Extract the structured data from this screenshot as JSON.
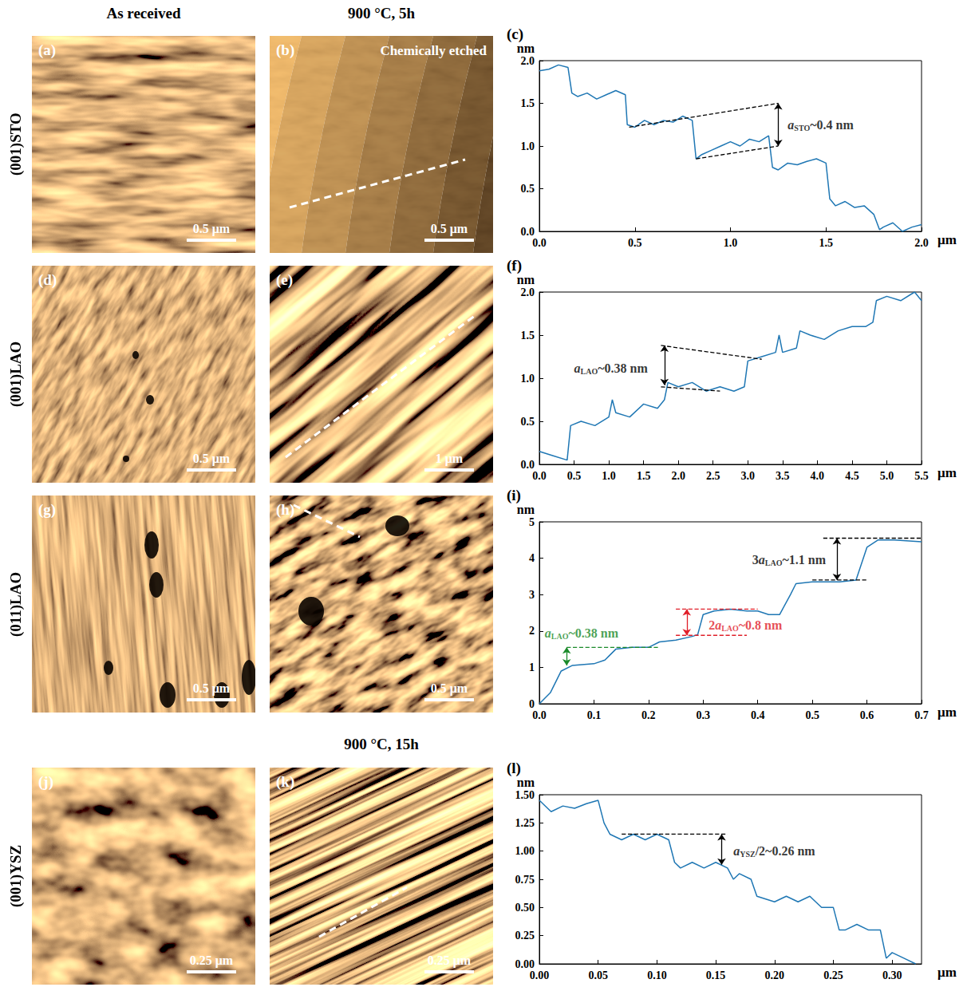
{
  "figure": {
    "column_titles": [
      "As received",
      "900 °C, 5h"
    ],
    "section_title": "900 °C, 15h",
    "rows": [
      {
        "label": "(001)STO",
        "panels": [
          {
            "letter": "(a)",
            "scale_bar": "0.5 μm"
          },
          {
            "letter": "(b)",
            "scale_bar": "0.5 μm",
            "note": "Chemically etched"
          }
        ]
      },
      {
        "label": "(001)LAO",
        "panels": [
          {
            "letter": "(d)",
            "scale_bar": "0.5 μm"
          },
          {
            "letter": "(e)",
            "scale_bar": "1 μm"
          }
        ]
      },
      {
        "label": "(011)LAO",
        "panels": [
          {
            "letter": "(g)",
            "scale_bar": "0.5 μm"
          },
          {
            "letter": "(h)",
            "scale_bar": "0.5 μm"
          }
        ]
      },
      {
        "label": "(001)YSZ",
        "panels": [
          {
            "letter": "(j)",
            "scale_bar": "0.25 μm"
          },
          {
            "letter": "(k)",
            "scale_bar": "0.25 μm"
          }
        ]
      }
    ]
  },
  "chart_data": [
    {
      "type": "line",
      "title": "(c)",
      "x_label": "μm",
      "y_label": "nm",
      "color": "#1f77b4",
      "x": [
        0,
        0.05,
        0.1,
        0.15,
        0.17,
        0.2,
        0.25,
        0.3,
        0.35,
        0.4,
        0.45,
        0.46,
        0.5,
        0.55,
        0.6,
        0.65,
        0.7,
        0.75,
        0.8,
        0.82,
        0.85,
        0.9,
        0.95,
        1.0,
        1.05,
        1.1,
        1.15,
        1.2,
        1.22,
        1.25,
        1.3,
        1.35,
        1.4,
        1.45,
        1.5,
        1.52,
        1.55,
        1.6,
        1.65,
        1.7,
        1.75,
        1.78,
        1.8,
        1.85,
        1.9,
        1.95,
        2.0
      ],
      "values": [
        1.88,
        1.9,
        1.95,
        1.92,
        1.62,
        1.58,
        1.62,
        1.55,
        1.6,
        1.65,
        1.6,
        1.25,
        1.22,
        1.3,
        1.25,
        1.3,
        1.28,
        1.35,
        1.3,
        0.85,
        0.9,
        0.95,
        1.0,
        1.05,
        1.0,
        1.08,
        1.05,
        1.12,
        0.75,
        0.72,
        0.8,
        0.78,
        0.82,
        0.85,
        0.8,
        0.38,
        0.3,
        0.35,
        0.28,
        0.3,
        0.2,
        0.02,
        0.05,
        0.1,
        0.0,
        0.05,
        0.08
      ],
      "xlim": [
        0,
        2.0
      ],
      "ylim": [
        0,
        2.0
      ],
      "xticks": [
        {
          "value": 0,
          "label": "0.0"
        },
        0.5,
        {
          "value": 1,
          "label": "1.0"
        },
        1.5,
        {
          "value": 2,
          "label": "2.0"
        }
      ],
      "yticks": [
        {
          "value": 0,
          "label": "0.0"
        },
        0.5,
        {
          "value": 1,
          "label": "1.0"
        },
        1.5,
        {
          "value": 2,
          "label": "2.0"
        }
      ],
      "annotations": [
        {
          "symbol": "a",
          "sub": "STO",
          "post": "~0.4 nm",
          "color": "#000000",
          "line_style": "dashed",
          "x": 1.3,
          "y": 1.25,
          "lines": [
            [
              0.47,
              1.22,
              1.25,
              1.5
            ],
            [
              0.82,
              0.85,
              1.25,
              1.0
            ]
          ],
          "arrow": [
            1.25,
            1.5,
            1.0
          ]
        }
      ]
    },
    {
      "type": "line",
      "title": "(f)",
      "x_label": "μm",
      "y_label": "nm",
      "color": "#1f77b4",
      "x": [
        0,
        0.2,
        0.4,
        0.45,
        0.6,
        0.8,
        1.0,
        1.05,
        1.1,
        1.3,
        1.5,
        1.7,
        1.8,
        1.85,
        2.0,
        2.2,
        2.4,
        2.6,
        2.8,
        2.95,
        3.0,
        3.2,
        3.4,
        3.45,
        3.5,
        3.7,
        3.75,
        3.9,
        4.1,
        4.3,
        4.5,
        4.7,
        4.8,
        4.85,
        5.0,
        5.2,
        5.4,
        5.5
      ],
      "values": [
        0.15,
        0.1,
        0.05,
        0.45,
        0.5,
        0.45,
        0.55,
        0.75,
        0.6,
        0.55,
        0.7,
        0.65,
        0.75,
        0.95,
        0.9,
        0.95,
        0.85,
        0.9,
        0.85,
        0.9,
        1.2,
        1.25,
        1.3,
        1.5,
        1.3,
        1.35,
        1.55,
        1.5,
        1.45,
        1.55,
        1.6,
        1.6,
        1.65,
        1.9,
        1.95,
        1.9,
        2.0,
        1.9
      ],
      "xlim": [
        0,
        5.5
      ],
      "ylim": [
        0,
        2.0
      ],
      "xticks": [
        {
          "value": 0,
          "label": "0.0"
        },
        0.5,
        {
          "value": 1,
          "label": "1.0"
        },
        1.5,
        {
          "value": 2,
          "label": "2.0"
        },
        2.5,
        {
          "value": 3,
          "label": "3.0"
        },
        3.5,
        {
          "value": 4,
          "label": "4.0"
        },
        4.5,
        {
          "value": 5,
          "label": "5.0"
        },
        5.5
      ],
      "yticks": [
        {
          "value": 0,
          "label": "0.0"
        },
        0.5,
        {
          "value": 1,
          "label": "1.0"
        },
        1.5,
        {
          "value": 2,
          "label": "2.0"
        }
      ],
      "annotations": [
        {
          "symbol": "a",
          "sub": "LAO",
          "post": "~0.38 nm",
          "color": "#000000",
          "line_style": "dashed",
          "x": 0.5,
          "y": 1.12,
          "lines": [
            [
              1.75,
              1.38,
              3.2,
              1.22
            ],
            [
              1.75,
              0.9,
              2.6,
              0.85
            ]
          ],
          "arrow": [
            1.8,
            1.38,
            0.92
          ]
        }
      ]
    },
    {
      "type": "line",
      "title": "(i)",
      "x_label": "μm",
      "y_label": "nm",
      "color": "#1f77b4",
      "x": [
        0,
        0.02,
        0.04,
        0.06,
        0.1,
        0.12,
        0.14,
        0.17,
        0.2,
        0.22,
        0.25,
        0.28,
        0.29,
        0.3,
        0.32,
        0.35,
        0.38,
        0.4,
        0.42,
        0.44,
        0.46,
        0.47,
        0.5,
        0.55,
        0.58,
        0.6,
        0.62,
        0.65,
        0.7
      ],
      "values": [
        0,
        0.3,
        0.9,
        1.05,
        1.1,
        1.2,
        1.5,
        1.55,
        1.55,
        1.7,
        1.75,
        1.85,
        1.9,
        2.45,
        2.55,
        2.6,
        2.55,
        2.55,
        2.45,
        2.45,
        3.0,
        3.3,
        3.35,
        3.35,
        3.4,
        4.3,
        4.5,
        4.5,
        4.45
      ],
      "xlim": [
        0,
        0.7
      ],
      "ylim": [
        0,
        5
      ],
      "xticks": [
        {
          "value": 0,
          "label": "0.0"
        },
        0.1,
        0.2,
        0.3,
        0.4,
        0.5,
        0.6,
        0.7
      ],
      "yticks": [
        0,
        1,
        2,
        3,
        4,
        5
      ],
      "annotations": [
        {
          "symbol": "a",
          "sub": "LAO",
          "post": "~0.38 nm",
          "color": "#1a8a2a",
          "line_style": "dashed",
          "x": 0.01,
          "y": 1.95,
          "lines": [
            [
              0.05,
              1.55,
              0.22,
              1.55
            ]
          ],
          "arrow": [
            0.05,
            1.05,
            1.55
          ]
        },
        {
          "pre": "2",
          "symbol": "a",
          "sub": "LAO",
          "post": "~0.8 nm",
          "color": "#e0202a",
          "line_style": "dashed",
          "x": 0.31,
          "y": 2.15,
          "lines": [
            [
              0.25,
              1.88,
              0.38,
              1.88
            ],
            [
              0.25,
              2.6,
              0.4,
              2.6
            ]
          ],
          "arrow": [
            0.27,
            1.88,
            2.6
          ]
        },
        {
          "pre": "3",
          "symbol": "a",
          "sub": "LAO",
          "post": "~1.1 nm",
          "color": "#000000",
          "line_style": "dashed",
          "x": 0.39,
          "y": 3.95,
          "lines": [
            [
              0.5,
              3.4,
              0.6,
              3.4
            ],
            [
              0.52,
              4.55,
              0.7,
              4.55
            ]
          ],
          "arrow": [
            0.545,
            3.4,
            4.55
          ]
        }
      ]
    },
    {
      "type": "line",
      "title": "(l)",
      "x_label": "μm",
      "y_label": "nm",
      "color": "#1f77b4",
      "x": [
        0,
        0.01,
        0.02,
        0.03,
        0.04,
        0.05,
        0.055,
        0.06,
        0.07,
        0.08,
        0.09,
        0.1,
        0.11,
        0.115,
        0.12,
        0.13,
        0.14,
        0.15,
        0.16,
        0.165,
        0.17,
        0.18,
        0.185,
        0.2,
        0.21,
        0.22,
        0.23,
        0.24,
        0.25,
        0.255,
        0.26,
        0.27,
        0.28,
        0.29,
        0.295,
        0.3,
        0.31,
        0.32
      ],
      "values": [
        1.45,
        1.35,
        1.4,
        1.38,
        1.42,
        1.45,
        1.25,
        1.15,
        1.1,
        1.15,
        1.1,
        1.15,
        1.1,
        0.9,
        0.85,
        0.9,
        0.85,
        0.9,
        0.85,
        0.75,
        0.8,
        0.75,
        0.6,
        0.55,
        0.6,
        0.55,
        0.6,
        0.5,
        0.5,
        0.3,
        0.3,
        0.35,
        0.3,
        0.3,
        0.05,
        0.1,
        0.05,
        0.0
      ],
      "xlim": [
        0,
        0.325
      ],
      "ylim": [
        0,
        1.5
      ],
      "xticks": [
        {
          "value": 0,
          "label": "0.00"
        },
        0.05,
        {
          "value": 0.1,
          "label": "0.10"
        },
        0.15,
        {
          "value": 0.2,
          "label": "0.20"
        },
        0.25,
        {
          "value": 0.3,
          "label": "0.30"
        }
      ],
      "yticks": [
        {
          "value": 0,
          "label": "0.00"
        },
        0.25,
        {
          "value": 0.5,
          "label": "0.50"
        },
        0.75,
        {
          "value": 1,
          "label": "1.00"
        },
        1.25,
        {
          "value": 1.5,
          "label": "1.50"
        }
      ],
      "annotations": [
        {
          "symbol": "a",
          "sub": "YSZ",
          "post": "/2~0.26 nm",
          "color": "#000000",
          "line_style": "dashed",
          "x": 0.165,
          "y": 1.0,
          "lines": [
            [
              0.07,
              1.15,
              0.16,
              1.15
            ]
          ],
          "arrow": [
            0.155,
            1.15,
            0.88
          ]
        }
      ]
    }
  ]
}
